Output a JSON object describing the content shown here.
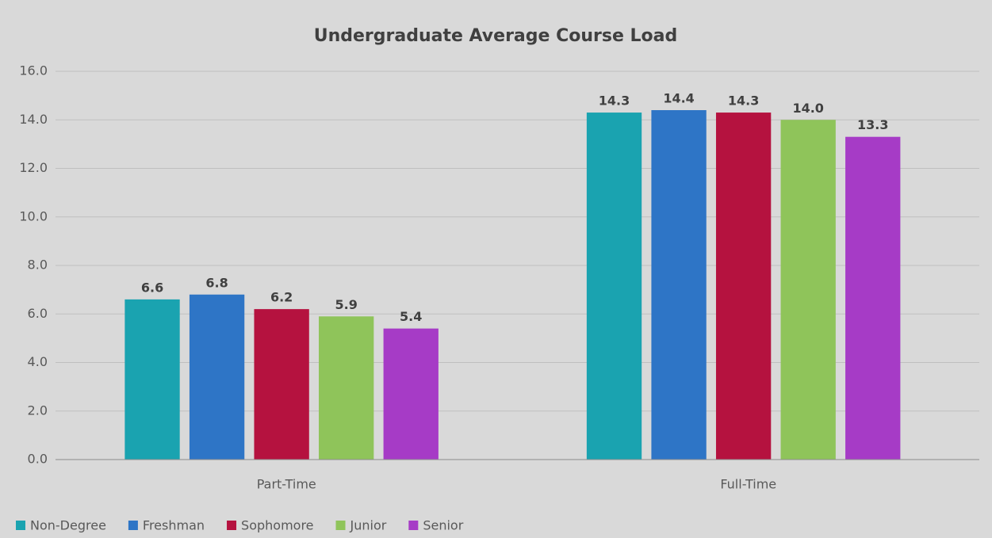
{
  "chart_data": {
    "type": "bar",
    "title": "Undergraduate Average Course Load",
    "categories": [
      "Part-Time",
      "Full-Time"
    ],
    "series": [
      {
        "name": "Non-Degree",
        "color": "#1aa3b0",
        "values": [
          6.6,
          14.3
        ],
        "value_labels": [
          "6.6",
          "14.3"
        ]
      },
      {
        "name": "Freshman",
        "color": "#2e75c6",
        "values": [
          6.8,
          14.4
        ],
        "value_labels": [
          "6.8",
          "14.4"
        ]
      },
      {
        "name": "Sophomore",
        "color": "#b5123f",
        "values": [
          6.2,
          14.3
        ],
        "value_labels": [
          "6.2",
          "14.3"
        ]
      },
      {
        "name": "Junior",
        "color": "#8fc45a",
        "values": [
          5.9,
          14.0
        ],
        "value_labels": [
          "5.9",
          "14.0"
        ]
      },
      {
        "name": "Senior",
        "color": "#a63bc6",
        "values": [
          5.4,
          13.3
        ],
        "value_labels": [
          "5.4",
          "13.3"
        ]
      }
    ],
    "ylim": [
      0,
      16
    ],
    "yticks": [
      {
        "value": 0,
        "label": "0.0"
      },
      {
        "value": 2,
        "label": "2.0"
      },
      {
        "value": 4,
        "label": "4.0"
      },
      {
        "value": 6,
        "label": "6.0"
      },
      {
        "value": 8,
        "label": "8.0"
      },
      {
        "value": 10,
        "label": "10.0"
      },
      {
        "value": 12,
        "label": "12.0"
      },
      {
        "value": 14,
        "label": "14.0"
      },
      {
        "value": 16,
        "label": "16.0"
      }
    ],
    "grid": true
  }
}
